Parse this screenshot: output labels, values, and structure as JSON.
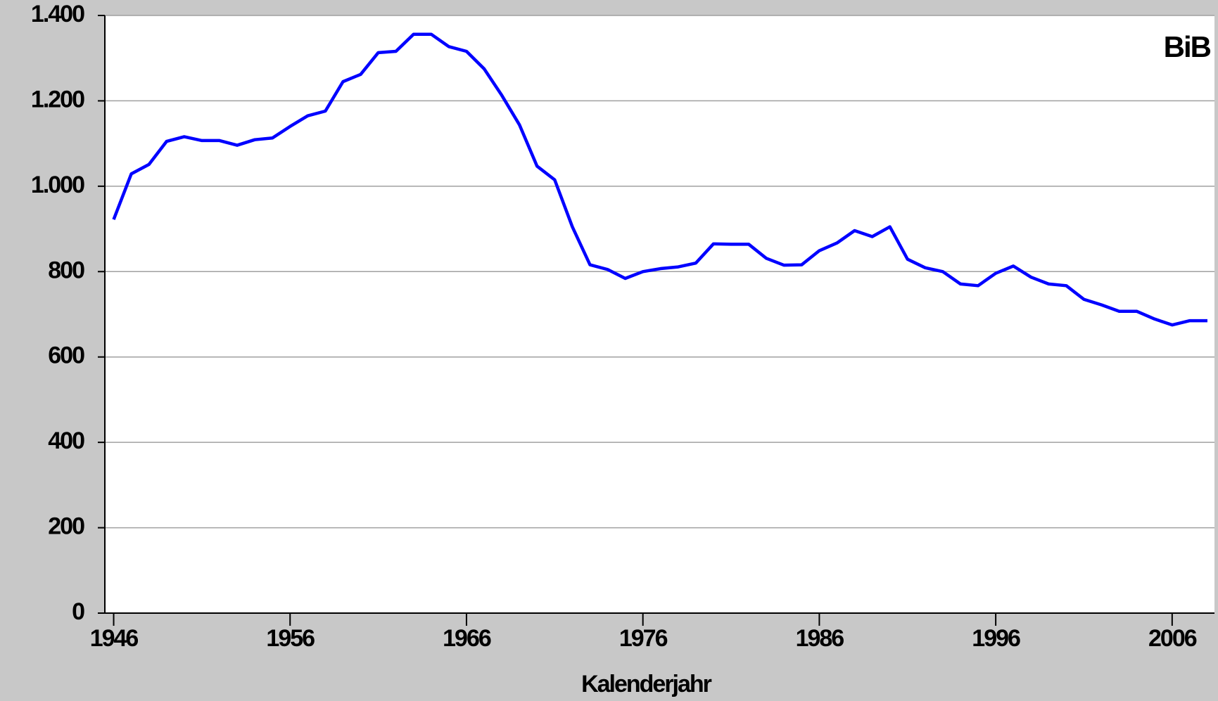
{
  "chart_data": {
    "type": "line",
    "annotation": "BiB",
    "x_label": "Kalenderjahr",
    "x": [
      1946,
      1947,
      1948,
      1949,
      1950,
      1951,
      1952,
      1953,
      1954,
      1955,
      1956,
      1957,
      1958,
      1959,
      1960,
      1961,
      1962,
      1963,
      1964,
      1965,
      1966,
      1967,
      1968,
      1969,
      1970,
      1971,
      1972,
      1973,
      1974,
      1975,
      1976,
      1977,
      1978,
      1979,
      1980,
      1981,
      1982,
      1983,
      1984,
      1985,
      1986,
      1987,
      1988,
      1989,
      1990,
      1991,
      1992,
      1993,
      1994,
      1995,
      1996,
      1997,
      1998,
      1999,
      2000,
      2001,
      2002,
      2003,
      2004,
      2005,
      2006,
      2007,
      2008
    ],
    "series": [
      {
        "color": "#0000ff",
        "values": [
          922,
          1029,
          1051,
          1105,
          1116,
          1107,
          1107,
          1096,
          1109,
          1113,
          1140,
          1165,
          1176,
          1245,
          1262,
          1313,
          1316,
          1356,
          1356,
          1327,
          1316,
          1275,
          1213,
          1144,
          1047,
          1015,
          905,
          816,
          805,
          784,
          800,
          807,
          811,
          820,
          865,
          864,
          864,
          831,
          815,
          816,
          849,
          867,
          896,
          882,
          905,
          829,
          809,
          800,
          771,
          767,
          796,
          813,
          787,
          771,
          767,
          735,
          722,
          707,
          707,
          689,
          675,
          685,
          685
        ]
      }
    ],
    "xlim": [
      1945.5,
      2008.4
    ],
    "xticks": [
      1946,
      1956,
      1966,
      1976,
      1986,
      1996,
      2006
    ],
    "ylim": [
      0,
      1400
    ],
    "yticks": [
      0,
      200,
      400,
      600,
      800,
      {
        "value": 1000,
        "label": "1.000"
      },
      {
        "value": 1200,
        "label": "1.200"
      },
      {
        "value": 1400,
        "label": "1.400"
      }
    ],
    "grid": true
  }
}
